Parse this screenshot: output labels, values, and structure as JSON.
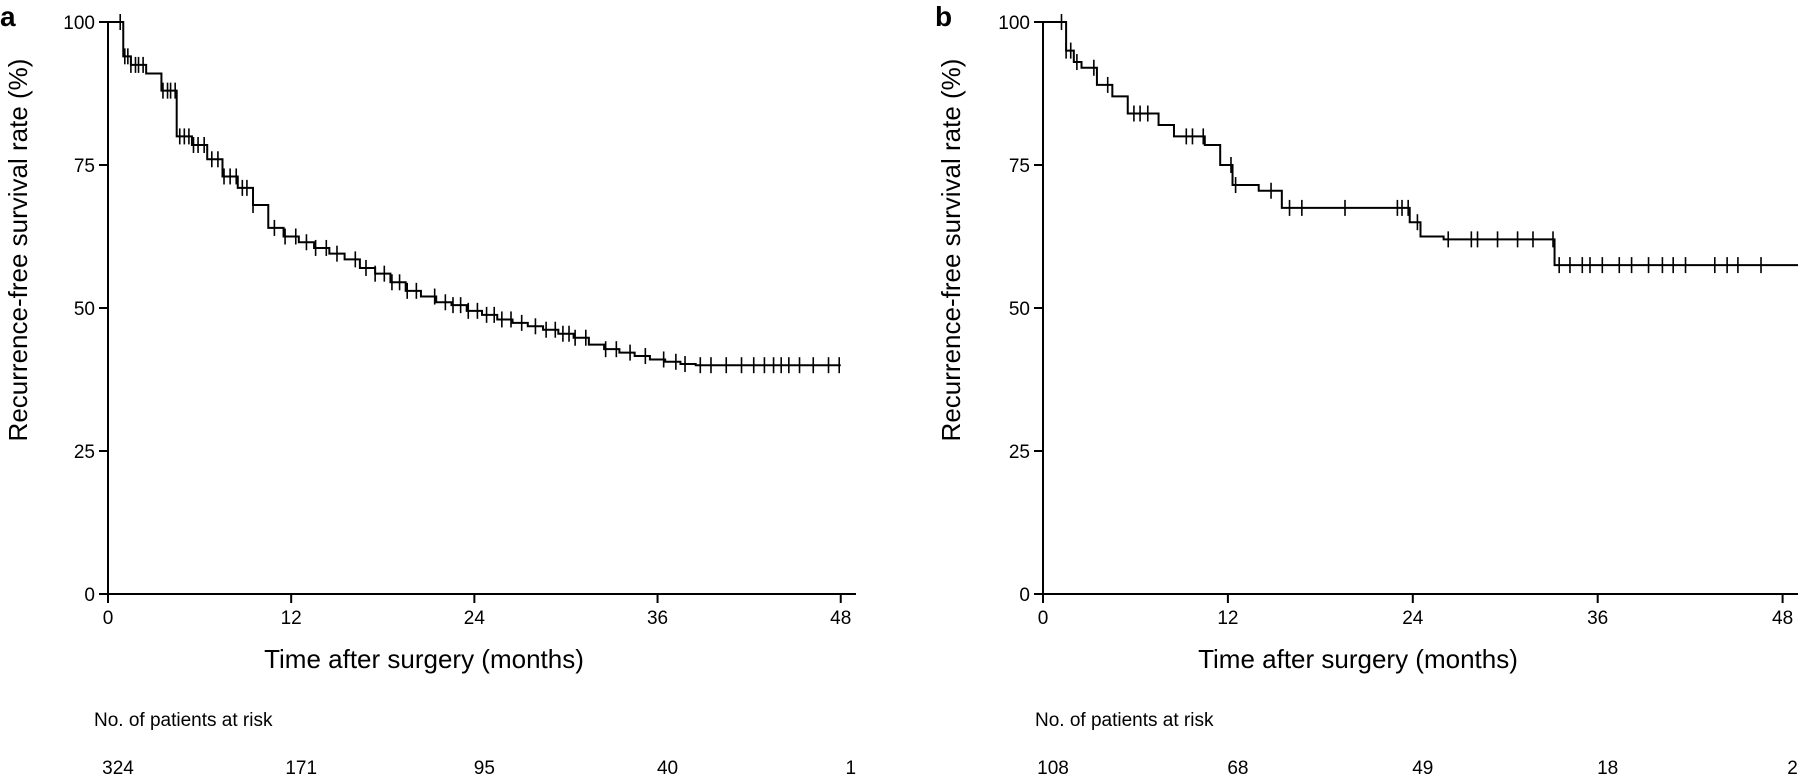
{
  "chart_data": [
    {
      "type": "line",
      "panel_label": "a",
      "xlabel": "Time after surgery (months)",
      "ylabel": "Recurrence-free survival rate (%)",
      "xlim": [
        0,
        49
      ],
      "ylim": [
        0,
        100
      ],
      "xticks": [
        "0",
        "12",
        "24",
        "36",
        "48"
      ],
      "yticks": [
        "0",
        "25",
        "50",
        "75",
        "100"
      ],
      "series": [
        {
          "x": [
            0,
            0.8,
            1.0,
            1.5,
            2.5,
            3.5,
            4.5,
            5.5,
            6.5,
            7.5,
            8.5,
            9.5,
            10.5,
            11.5,
            12.5,
            13.5,
            14.5,
            15.5,
            16.5,
            17.5,
            18.5,
            19.5,
            20.5,
            21.5,
            22.5,
            23.5,
            24.5,
            25.5,
            26.5,
            27.5,
            28.5,
            29.5,
            30.5,
            31.5,
            32.5,
            33.5,
            34.5,
            35.5,
            36.5,
            37.5,
            38.5,
            40,
            42,
            44,
            46,
            48
          ],
          "y": [
            100,
            100,
            94,
            92.5,
            91,
            88,
            80,
            78.5,
            76,
            73,
            71,
            68,
            64,
            62.5,
            61.5,
            60.5,
            59.5,
            58.5,
            57,
            56,
            54.5,
            53,
            52,
            51,
            50.5,
            49.5,
            48.8,
            48,
            47.4,
            46.8,
            46.2,
            45.5,
            44.8,
            43.6,
            42.8,
            42.2,
            41.6,
            41,
            40.6,
            40.2,
            40,
            40,
            40,
            40,
            40,
            40
          ]
        }
      ],
      "censor_times": [
        0.8,
        1.1,
        1.3,
        1.5,
        1.8,
        2.0,
        2.3,
        3.6,
        3.9,
        4.1,
        4.4,
        4.7,
        5.0,
        5.3,
        5.6,
        5.9,
        6.3,
        6.8,
        7.2,
        7.6,
        8.0,
        8.4,
        8.8,
        9.1,
        9.5,
        10.9,
        11.6,
        12.3,
        13.0,
        13.6,
        14.3,
        15.0,
        16.2,
        16.9,
        17.5,
        18.1,
        18.6,
        19.1,
        19.6,
        20.2,
        21.4,
        22.1,
        22.6,
        23.1,
        23.6,
        24.2,
        24.8,
        25.3,
        25.8,
        26.4,
        27.1,
        28.0,
        28.7,
        29.3,
        29.8,
        30.2,
        30.6,
        31.3,
        32.6,
        33.3,
        34.2,
        35.2,
        36.4,
        37.2,
        37.8,
        38.8,
        39.5,
        40.5,
        41.5,
        42.3,
        43.0,
        43.6,
        44.1,
        44.6,
        45.3,
        46.2,
        47.2,
        47.9
      ],
      "risk_table": {
        "title": "No. of patients at risk",
        "times": [
          0,
          12,
          24,
          36,
          48
        ],
        "counts": [
          "324",
          "171",
          "95",
          "40",
          "1"
        ]
      }
    },
    {
      "type": "line",
      "panel_label": "b",
      "xlabel": "Time after surgery (months)",
      "ylabel": "Recurrence-free survival rate (%)",
      "xlim": [
        0,
        49
      ],
      "ylim": [
        0,
        100
      ],
      "xticks": [
        "0",
        "12",
        "24",
        "36",
        "48"
      ],
      "yticks": [
        "0",
        "25",
        "50",
        "75",
        "100"
      ],
      "series": [
        {
          "x": [
            0,
            1.3,
            1.5,
            2.0,
            2.5,
            3.5,
            4.5,
            5.5,
            7.5,
            8.5,
            10.5,
            11.5,
            12.3,
            14.0,
            15.5,
            23.0,
            23.8,
            24.5,
            26.0,
            32.5,
            33.2,
            49
          ],
          "y": [
            100,
            100,
            95,
            93,
            92,
            89,
            87,
            84,
            82,
            80,
            78.5,
            75,
            71.5,
            70.5,
            67.5,
            67.5,
            65,
            62.5,
            62,
            62,
            57.5,
            57.5
          ]
        }
      ],
      "censor_times": [
        1.2,
        1.5,
        1.8,
        2.2,
        3.3,
        4.2,
        5.9,
        6.3,
        6.8,
        9.3,
        9.7,
        10.4,
        12.2,
        12.5,
        14.8,
        16.0,
        16.8,
        19.6,
        23.0,
        23.3,
        23.7,
        24.3,
        26.3,
        27.8,
        28.2,
        29.5,
        30.8,
        31.8,
        33.1,
        33.5,
        34.2,
        35.0,
        35.5,
        36.3,
        37.4,
        38.2,
        39.3,
        40.2,
        40.9,
        41.7,
        43.6,
        44.4,
        45.1,
        46.6
      ],
      "risk_table": {
        "title": "No. of patients at risk",
        "times": [
          0,
          12,
          24,
          36,
          48
        ],
        "counts": [
          "108",
          "68",
          "49",
          "18",
          "2"
        ]
      }
    }
  ]
}
